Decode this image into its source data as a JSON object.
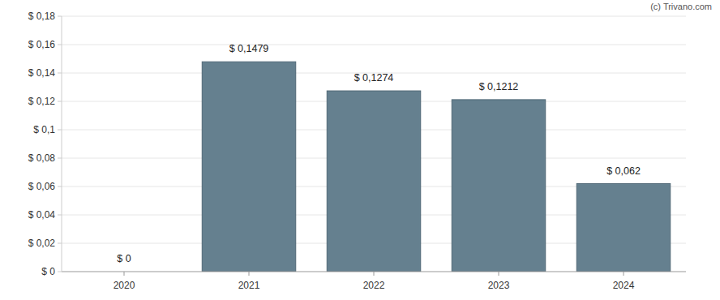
{
  "chart_data": {
    "type": "bar",
    "categories": [
      "2020",
      "2021",
      "2022",
      "2023",
      "2024"
    ],
    "values": [
      0,
      0.1479,
      0.1274,
      0.1212,
      0.062
    ],
    "value_labels": [
      "$ 0",
      "$ 0,1479",
      "$ 0,1274",
      "$ 0,1212",
      "$ 0,062"
    ],
    "data_labels": true,
    "color": "#65808f",
    "ylim": [
      0,
      0.18
    ],
    "yticks": [
      {
        "value": 0,
        "label": "$ 0"
      },
      {
        "value": 0.02,
        "label": "$ 0,02"
      },
      {
        "value": 0.04,
        "label": "$ 0,04"
      },
      {
        "value": 0.06,
        "label": "$ 0,06"
      },
      {
        "value": 0.08,
        "label": "$ 0,08"
      },
      {
        "value": 0.1,
        "label": "$ 0,1"
      },
      {
        "value": 0.12,
        "label": "$ 0,12"
      },
      {
        "value": 0.14,
        "label": "$ 0,14"
      },
      {
        "value": 0.16,
        "label": "$ 0,16"
      },
      {
        "value": 0.18,
        "label": "$ 0,18"
      }
    ],
    "grid": true,
    "annotations": [
      "(c) Trivano.com"
    ]
  }
}
